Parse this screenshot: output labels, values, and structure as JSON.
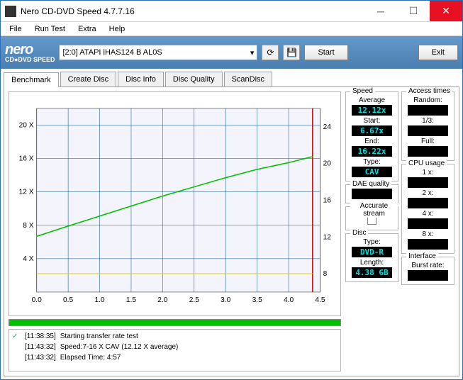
{
  "window": {
    "title": "Nero CD-DVD Speed 4.7.7.16"
  },
  "logo": {
    "main": "nero",
    "sub": "CD●DVD SPEED"
  },
  "menu": [
    "File",
    "Run Test",
    "Extra",
    "Help"
  ],
  "device": {
    "text": "[2:0]   ATAPI iHAS124   B AL0S"
  },
  "toolbar": {
    "start": "Start",
    "exit": "Exit"
  },
  "tabs": [
    "Benchmark",
    "Create Disc",
    "Disc Info",
    "Disc Quality",
    "ScanDisc"
  ],
  "chart": {
    "type": "line",
    "plot_bg": "#f4f4fc",
    "grid_color": "#0050a0",
    "left_axis": {
      "label_suffix": " X",
      "ticks": [
        4,
        8,
        12,
        16,
        20
      ],
      "ylim": [
        0,
        22
      ]
    },
    "right_axis": {
      "ticks": [
        8,
        12,
        16,
        20,
        24
      ],
      "ylim": [
        6,
        26
      ]
    },
    "x_axis": {
      "ticks": [
        0.0,
        0.5,
        1.0,
        1.5,
        2.0,
        2.5,
        3.0,
        3.5,
        4.0,
        4.5
      ],
      "xlim": [
        0,
        4.5
      ]
    },
    "green_line": {
      "color": "#00c000",
      "width": 1.5,
      "points": [
        [
          0.0,
          6.67
        ],
        [
          0.5,
          7.9
        ],
        [
          1.0,
          9.1
        ],
        [
          1.5,
          10.3
        ],
        [
          2.0,
          11.5
        ],
        [
          2.5,
          12.6
        ],
        [
          3.0,
          13.7
        ],
        [
          3.5,
          14.7
        ],
        [
          4.0,
          15.5
        ],
        [
          4.38,
          16.22
        ]
      ]
    },
    "yellow_line": {
      "color": "#e0d000",
      "width": 1,
      "y_on_right_axis": 8,
      "x_range": [
        0,
        4.38
      ]
    },
    "red_vline": {
      "color": "#d00000",
      "x": 4.38
    }
  },
  "log": [
    {
      "time": "[11:38:35]",
      "msg": "Starting transfer rate test"
    },
    {
      "time": "[11:43:32]",
      "msg": "Speed:7-16 X CAV (12.12 X average)"
    },
    {
      "time": "[11:43:32]",
      "msg": "Elapsed Time:  4:57"
    }
  ],
  "panels": {
    "speed": {
      "title": "Speed",
      "rows": [
        {
          "label": "Average",
          "value": "12.12x"
        },
        {
          "label": "Start:",
          "value": "6.67x"
        },
        {
          "label": "End:",
          "value": "16.22x"
        },
        {
          "label": "Type:",
          "value": "CAV"
        }
      ]
    },
    "dae": {
      "title": "DAE quality",
      "value": ""
    },
    "accurate": {
      "title": "Accurate stream"
    },
    "disc": {
      "title": "Disc",
      "rows": [
        {
          "label": "Type:",
          "value": "DVD-R"
        },
        {
          "label": "Length:",
          "value": "4.38 GB"
        }
      ]
    },
    "access": {
      "title": "Access times",
      "rows": [
        {
          "label": "Random:",
          "value": ""
        },
        {
          "label": "1/3:",
          "value": ""
        },
        {
          "label": "Full:",
          "value": ""
        }
      ]
    },
    "cpu": {
      "title": "CPU usage",
      "rows": [
        {
          "label": "1 x:",
          "value": ""
        },
        {
          "label": "2 x:",
          "value": ""
        },
        {
          "label": "4 x:",
          "value": ""
        },
        {
          "label": "8 x:",
          "value": ""
        }
      ]
    },
    "interface": {
      "title": "Interface",
      "rows": [
        {
          "label": "Burst rate:",
          "value": ""
        }
      ]
    }
  },
  "colors": {
    "value_text": "#00e0e0",
    "value_bg": "#000000"
  }
}
